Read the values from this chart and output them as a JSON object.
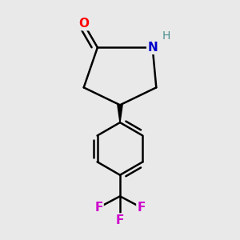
{
  "background_color": "#e9e9e9",
  "bond_color": "#000000",
  "bond_width": 1.8,
  "atom_labels": {
    "O": {
      "color": "#ff0000",
      "fontsize": 11,
      "fontweight": "bold"
    },
    "N": {
      "color": "#0000cc",
      "fontsize": 11,
      "fontweight": "bold"
    },
    "H": {
      "color": "#4a9090",
      "fontsize": 10,
      "fontweight": "normal"
    },
    "F": {
      "color": "#cc00cc",
      "fontsize": 11,
      "fontweight": "bold"
    }
  },
  "xlim": [
    0.15,
    0.85
  ],
  "ylim": [
    0.02,
    0.98
  ],
  "figsize": [
    3.0,
    3.0
  ],
  "dpi": 100
}
